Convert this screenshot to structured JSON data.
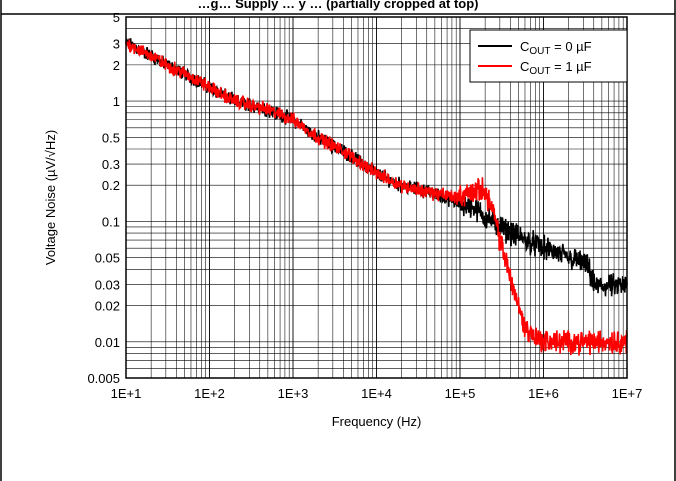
{
  "chart_data": {
    "type": "line",
    "title": "…g… Supply … y … (partially cropped at top)",
    "xlabel": "Frequency (Hz)",
    "ylabel": "Voltage Noise (µV/√Hz)",
    "x_scale": "log",
    "y_scale": "log",
    "xlim": [
      10,
      10000000
    ],
    "ylim": [
      0.005,
      5
    ],
    "x_tick_labels": [
      "1E+1",
      "1E+2",
      "1E+3",
      "1E+4",
      "1E+5",
      "1E+6",
      "1E+7"
    ],
    "x_ticks": [
      10,
      100,
      1000,
      10000,
      100000,
      1000000,
      10000000
    ],
    "y_tick_labels": [
      "5",
      "3",
      "2",
      "1",
      "0.5",
      "0.3",
      "0.2",
      "0.1",
      "0.05",
      "0.03",
      "0.02",
      "0.01",
      "0.005"
    ],
    "y_ticks": [
      5,
      3,
      2,
      1,
      0.5,
      0.3,
      0.2,
      0.1,
      0.05,
      0.03,
      0.02,
      0.01,
      0.005
    ],
    "grid": true,
    "legend_position": "top-right",
    "series": [
      {
        "name": "COUT = 0 µF",
        "legend_main": "C",
        "legend_sub": "OUT",
        "legend_rest": " = 0 µF",
        "color": "#000000",
        "x": [
          10,
          12,
          15,
          20,
          30,
          50,
          100,
          200,
          500,
          1000,
          2000,
          5000,
          10000,
          20000,
          50000,
          100000,
          150000,
          200000,
          300000,
          500000,
          1000000,
          2000000,
          3000000,
          3500000,
          4000000,
          10000000
        ],
        "y": [
          3.0,
          2.9,
          2.6,
          2.4,
          2.0,
          1.7,
          1.3,
          1.0,
          0.85,
          0.7,
          0.5,
          0.35,
          0.25,
          0.2,
          0.17,
          0.14,
          0.13,
          0.11,
          0.09,
          0.075,
          0.06,
          0.05,
          0.045,
          0.04,
          0.029,
          0.029
        ]
      },
      {
        "name": "COUT = 1 µF",
        "legend_main": "C",
        "legend_sub": "OUT",
        "legend_rest": " = 1 µF",
        "color": "#ff0000",
        "x": [
          10,
          12,
          15,
          20,
          30,
          50,
          100,
          200,
          500,
          1000,
          2000,
          5000,
          10000,
          20000,
          50000,
          100000,
          150000,
          200000,
          250000,
          300000,
          400000,
          500000,
          600000,
          800000,
          1000000,
          2000000,
          10000000
        ],
        "y": [
          3.0,
          2.9,
          2.6,
          2.4,
          2.0,
          1.7,
          1.3,
          1.0,
          0.85,
          0.7,
          0.5,
          0.35,
          0.25,
          0.2,
          0.17,
          0.16,
          0.18,
          0.18,
          0.12,
          0.07,
          0.035,
          0.02,
          0.013,
          0.011,
          0.01,
          0.01,
          0.01
        ]
      }
    ]
  }
}
